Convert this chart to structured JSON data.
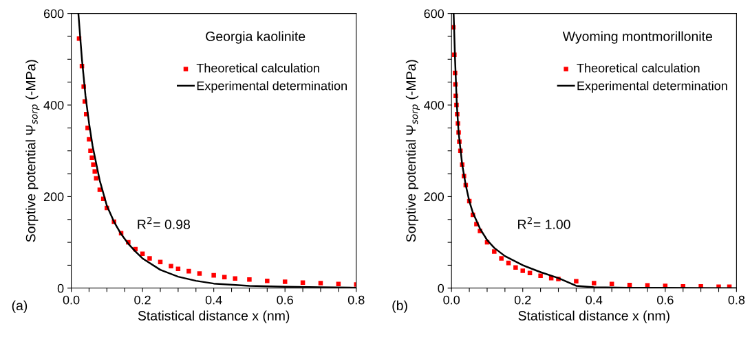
{
  "chart_data": [
    {
      "type": "scatter",
      "title": "Georgia kaolinite",
      "xlabel": "Statistical distance x (nm)",
      "ylabel": "Sorptive potential Ψ$_{sorp}$ (-MPa)",
      "annotations": [
        "R$^{2}$= 0.98",
        "(a)"
      ],
      "xlim": [
        0,
        0.8
      ],
      "ylim": [
        0,
        600
      ],
      "xticks": [
        {
          "value": 0,
          "label": "0.0"
        },
        {
          "value": 0.05,
          "label": null
        },
        {
          "value": 0.1,
          "label": null
        },
        {
          "value": 0.15,
          "label": null
        },
        {
          "value": 0.2,
          "label": "0.2"
        },
        {
          "value": 0.25,
          "label": null
        },
        {
          "value": 0.3,
          "label": null
        },
        {
          "value": 0.35,
          "label": null
        },
        {
          "value": 0.4,
          "label": "0.4"
        },
        {
          "value": 0.45,
          "label": null
        },
        {
          "value": 0.5,
          "label": null
        },
        {
          "value": 0.55,
          "label": null
        },
        {
          "value": 0.6,
          "label": "0.6"
        },
        {
          "value": 0.65,
          "label": null
        },
        {
          "value": 0.7,
          "label": null
        },
        {
          "value": 0.75,
          "label": null
        },
        {
          "value": 0.8,
          "label": "0.8"
        }
      ],
      "yticks": [
        0,
        {
          "value": 50,
          "label": null
        },
        {
          "value": 100,
          "label": null
        },
        {
          "value": 150,
          "label": null
        },
        200,
        {
          "value": 250,
          "label": null
        },
        {
          "value": 300,
          "label": null
        },
        {
          "value": 350,
          "label": null
        },
        400,
        {
          "value": 450,
          "label": null
        },
        {
          "value": 500,
          "label": null
        },
        {
          "value": 550,
          "label": null
        },
        600
      ],
      "grid": false,
      "legend": "top right",
      "series": [
        {
          "name": "Theoretical calculation",
          "marker": "square",
          "color": "#ff0000",
          "x": [
            0.022,
            0.03,
            0.035,
            0.038,
            0.042,
            0.046,
            0.05,
            0.054,
            0.058,
            0.062,
            0.066,
            0.07,
            0.08,
            0.09,
            0.1,
            0.12,
            0.14,
            0.16,
            0.18,
            0.2,
            0.22,
            0.25,
            0.28,
            0.3,
            0.33,
            0.36,
            0.4,
            0.43,
            0.46,
            0.5,
            0.55,
            0.6,
            0.65,
            0.7,
            0.75,
            0.8
          ],
          "values": [
            545,
            485,
            440,
            408,
            380,
            350,
            325,
            300,
            285,
            270,
            255,
            240,
            215,
            195,
            175,
            145,
            120,
            100,
            85,
            75,
            65,
            57,
            48,
            42,
            37,
            32,
            28,
            24,
            21,
            19,
            16,
            14,
            12,
            11,
            9,
            8
          ]
        },
        {
          "name": "Experimental determination",
          "type": "line",
          "marker": "none",
          "line_style": "solid",
          "color": "#000000",
          "x": [
            0.02,
            0.03,
            0.04,
            0.05,
            0.06,
            0.08,
            0.1,
            0.12,
            0.14,
            0.16,
            0.18,
            0.2,
            0.25,
            0.3,
            0.35,
            0.4,
            0.5,
            0.6,
            0.7,
            0.8
          ],
          "values": [
            600,
            500,
            420,
            360,
            310,
            235,
            180,
            145,
            118,
            97,
            80,
            65,
            40,
            25,
            16,
            10,
            5,
            3,
            2,
            1
          ]
        }
      ]
    },
    {
      "type": "scatter",
      "title": "Wyoming montmorillonite",
      "xlabel": "Statistical distance x (nm)",
      "ylabel": "Sorptive potential Ψ$_{sorp}$ (-MPa)",
      "annotations": [
        "R$^{2}$= 1.00",
        "(b)"
      ],
      "xlim": [
        0,
        0.8
      ],
      "ylim": [
        0,
        600
      ],
      "xticks": [
        {
          "value": 0,
          "label": "0.0"
        },
        {
          "value": 0.05,
          "label": null
        },
        {
          "value": 0.1,
          "label": null
        },
        {
          "value": 0.15,
          "label": null
        },
        {
          "value": 0.2,
          "label": "0.2"
        },
        {
          "value": 0.25,
          "label": null
        },
        {
          "value": 0.3,
          "label": null
        },
        {
          "value": 0.35,
          "label": null
        },
        {
          "value": 0.4,
          "label": "0.4"
        },
        {
          "value": 0.45,
          "label": null
        },
        {
          "value": 0.5,
          "label": null
        },
        {
          "value": 0.55,
          "label": null
        },
        {
          "value": 0.6,
          "label": "0.6"
        },
        {
          "value": 0.65,
          "label": null
        },
        {
          "value": 0.7,
          "label": null
        },
        {
          "value": 0.75,
          "label": null
        },
        {
          "value": 0.8,
          "label": "0.8"
        }
      ],
      "yticks": [
        0,
        {
          "value": 50,
          "label": null
        },
        {
          "value": 100,
          "label": null
        },
        {
          "value": 150,
          "label": null
        },
        200,
        {
          "value": 250,
          "label": null
        },
        {
          "value": 300,
          "label": null
        },
        {
          "value": 350,
          "label": null
        },
        400,
        {
          "value": 450,
          "label": null
        },
        {
          "value": 500,
          "label": null
        },
        {
          "value": 550,
          "label": null
        },
        600
      ],
      "grid": false,
      "legend": "top right",
      "series": [
        {
          "name": "Theoretical calculation",
          "marker": "square",
          "color": "#ff0000",
          "x": [
            0.005,
            0.008,
            0.01,
            0.011,
            0.012,
            0.014,
            0.016,
            0.018,
            0.02,
            0.022,
            0.025,
            0.03,
            0.035,
            0.04,
            0.05,
            0.06,
            0.07,
            0.08,
            0.1,
            0.12,
            0.14,
            0.16,
            0.18,
            0.2,
            0.22,
            0.25,
            0.28,
            0.3,
            0.35,
            0.4,
            0.45,
            0.5,
            0.55,
            0.6,
            0.65,
            0.7,
            0.75,
            0.78
          ],
          "values": [
            570,
            510,
            470,
            445,
            420,
            400,
            380,
            360,
            340,
            320,
            300,
            270,
            245,
            225,
            190,
            160,
            140,
            125,
            100,
            80,
            65,
            55,
            45,
            38,
            33,
            27,
            22,
            20,
            15,
            11,
            9,
            7,
            6,
            5,
            4,
            4,
            3,
            3
          ]
        },
        {
          "name": "Experimental determination",
          "type": "line",
          "marker": "none",
          "line_style": "solid",
          "color": "#000000",
          "x": [
            0.006,
            0.01,
            0.015,
            0.02,
            0.03,
            0.04,
            0.05,
            0.06,
            0.08,
            0.1,
            0.12,
            0.15,
            0.2,
            0.25,
            0.3,
            0.33,
            0.35,
            0.4,
            0.5,
            0.6,
            0.8
          ],
          "values": [
            600,
            500,
            400,
            340,
            270,
            225,
            190,
            165,
            130,
            105,
            88,
            70,
            50,
            35,
            22,
            12,
            5,
            2,
            1,
            1,
            0
          ]
        }
      ]
    }
  ]
}
